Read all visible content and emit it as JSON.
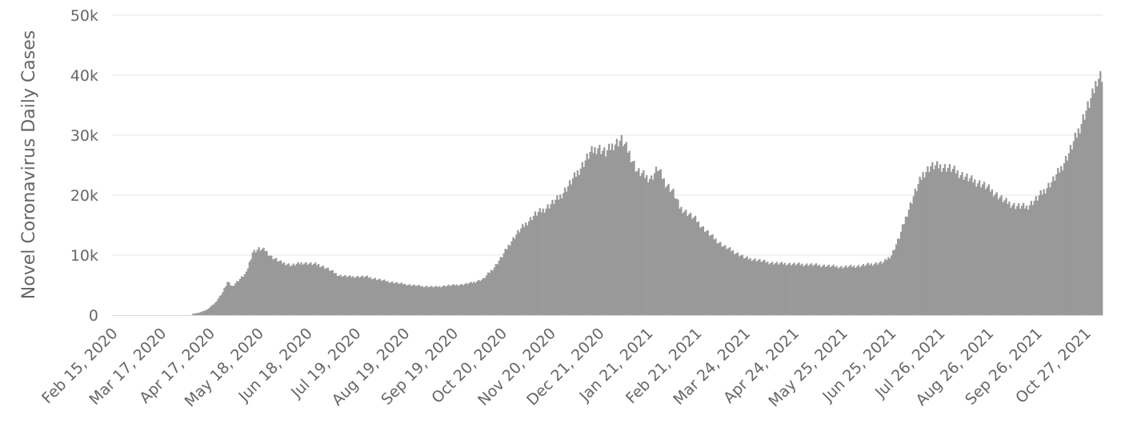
{
  "chart_data": {
    "type": "bar",
    "title": "",
    "xlabel": "",
    "ylabel": "Novel Coronavirus Daily Cases",
    "ylim": [
      0,
      50000
    ],
    "y_ticks": [
      0,
      10000,
      20000,
      30000,
      40000,
      50000
    ],
    "y_tick_labels": [
      "0",
      "10k",
      "20k",
      "30k",
      "40k",
      "50k"
    ],
    "x_start": "2020-02-15",
    "x_end": "2021-11-06",
    "x_ticks": [
      {
        "date": "2020-02-15",
        "label": "Feb 15, 2020"
      },
      {
        "date": "2020-03-17",
        "label": "Mar 17, 2020"
      },
      {
        "date": "2020-04-17",
        "label": "Apr 17, 2020"
      },
      {
        "date": "2020-05-18",
        "label": "May 18, 2020"
      },
      {
        "date": "2020-06-18",
        "label": "Jun 18, 2020"
      },
      {
        "date": "2020-07-19",
        "label": "Jul 19, 2020"
      },
      {
        "date": "2020-08-19",
        "label": "Aug 19, 2020"
      },
      {
        "date": "2020-09-19",
        "label": "Sep 19, 2020"
      },
      {
        "date": "2020-10-20",
        "label": "Oct 20, 2020"
      },
      {
        "date": "2020-11-20",
        "label": "Nov 20, 2020"
      },
      {
        "date": "2020-12-21",
        "label": "Dec 21, 2020"
      },
      {
        "date": "2021-01-21",
        "label": "Jan 21, 2021"
      },
      {
        "date": "2021-02-21",
        "label": "Feb 21, 2021"
      },
      {
        "date": "2021-03-24",
        "label": "Mar 24, 2021"
      },
      {
        "date": "2021-04-24",
        "label": "Apr 24, 2021"
      },
      {
        "date": "2021-05-25",
        "label": "May 25, 2021"
      },
      {
        "date": "2021-06-25",
        "label": "Jun 25, 2021"
      },
      {
        "date": "2021-07-26",
        "label": "Jul 26, 2021"
      },
      {
        "date": "2021-08-26",
        "label": "Aug 26, 2021"
      },
      {
        "date": "2021-09-26",
        "label": "Sep 26, 2021"
      },
      {
        "date": "2021-10-27",
        "label": "Oct 27, 2021"
      }
    ],
    "grid": true,
    "legend": "none",
    "bar_color": "#999999",
    "gridline_color": "#e6e6e6",
    "baseline_color": "#ccd6eb",
    "text_color": "#666666",
    "series": [
      {
        "points": [
          [
            "2020-02-15",
            0
          ],
          [
            "2020-04-05",
            0
          ],
          [
            "2020-04-06",
            200
          ],
          [
            "2020-04-10",
            400
          ],
          [
            "2020-04-15",
            900
          ],
          [
            "2020-04-20",
            2000
          ],
          [
            "2020-04-25",
            3800
          ],
          [
            "2020-04-28",
            5500
          ],
          [
            "2020-05-01",
            4800
          ],
          [
            "2020-05-05",
            5800
          ],
          [
            "2020-05-10",
            7000
          ],
          [
            "2020-05-14",
            10500
          ],
          [
            "2020-05-18",
            11000
          ],
          [
            "2020-05-22",
            10800
          ],
          [
            "2020-05-26",
            9700
          ],
          [
            "2020-06-01",
            8800
          ],
          [
            "2020-06-08",
            8300
          ],
          [
            "2020-06-15",
            8700
          ],
          [
            "2020-06-25",
            8400
          ],
          [
            "2020-07-01",
            7700
          ],
          [
            "2020-07-08",
            6600
          ],
          [
            "2020-07-15",
            6400
          ],
          [
            "2020-07-25",
            6400
          ],
          [
            "2020-08-01",
            6000
          ],
          [
            "2020-08-10",
            5500
          ],
          [
            "2020-08-20",
            5100
          ],
          [
            "2020-08-30",
            4800
          ],
          [
            "2020-09-08",
            4700
          ],
          [
            "2020-09-15",
            4900
          ],
          [
            "2020-09-25",
            5100
          ],
          [
            "2020-10-01",
            5400
          ],
          [
            "2020-10-08",
            6000
          ],
          [
            "2020-10-15",
            8000
          ],
          [
            "2020-10-20",
            9800
          ],
          [
            "2020-10-25",
            12000
          ],
          [
            "2020-10-30",
            13800
          ],
          [
            "2020-11-05",
            15500
          ],
          [
            "2020-11-10",
            16800
          ],
          [
            "2020-11-15",
            17500
          ],
          [
            "2020-11-20",
            18500
          ],
          [
            "2020-11-25",
            19500
          ],
          [
            "2020-12-01",
            21500
          ],
          [
            "2020-12-05",
            23000
          ],
          [
            "2020-12-10",
            25000
          ],
          [
            "2020-12-15",
            27000
          ],
          [
            "2020-12-20",
            28000
          ],
          [
            "2020-12-25",
            27000
          ],
          [
            "2020-12-30",
            28500
          ],
          [
            "2021-01-04",
            29200
          ],
          [
            "2021-01-09",
            27000
          ],
          [
            "2021-01-14",
            24000
          ],
          [
            "2021-01-20",
            23000
          ],
          [
            "2021-01-23",
            22800
          ],
          [
            "2021-01-27",
            24500
          ],
          [
            "2021-02-01",
            22000
          ],
          [
            "2021-02-06",
            20500
          ],
          [
            "2021-02-10",
            18000
          ],
          [
            "2021-02-15",
            17000
          ],
          [
            "2021-02-20",
            16000
          ],
          [
            "2021-02-25",
            14500
          ],
          [
            "2021-03-03",
            13000
          ],
          [
            "2021-03-10",
            11500
          ],
          [
            "2021-03-17",
            10500
          ],
          [
            "2021-03-24",
            9500
          ],
          [
            "2021-03-31",
            9200
          ],
          [
            "2021-04-07",
            8800
          ],
          [
            "2021-04-14",
            8600
          ],
          [
            "2021-04-24",
            8500
          ],
          [
            "2021-05-05",
            8400
          ],
          [
            "2021-05-15",
            8200
          ],
          [
            "2021-05-25",
            8000
          ],
          [
            "2021-06-05",
            8200
          ],
          [
            "2021-06-12",
            8500
          ],
          [
            "2021-06-20",
            8800
          ],
          [
            "2021-06-25",
            10000
          ],
          [
            "2021-06-30",
            13000
          ],
          [
            "2021-07-05",
            17000
          ],
          [
            "2021-07-10",
            20500
          ],
          [
            "2021-07-15",
            23500
          ],
          [
            "2021-07-20",
            24800
          ],
          [
            "2021-07-26",
            24800
          ],
          [
            "2021-08-01",
            24500
          ],
          [
            "2021-08-08",
            23500
          ],
          [
            "2021-08-15",
            22500
          ],
          [
            "2021-08-22",
            21800
          ],
          [
            "2021-08-29",
            20500
          ],
          [
            "2021-09-05",
            19000
          ],
          [
            "2021-09-12",
            18200
          ],
          [
            "2021-09-19",
            18000
          ],
          [
            "2021-09-26",
            19500
          ],
          [
            "2021-10-01",
            21000
          ],
          [
            "2021-10-06",
            22500
          ],
          [
            "2021-10-11",
            24500
          ],
          [
            "2021-10-16",
            27000
          ],
          [
            "2021-10-21",
            30000
          ],
          [
            "2021-10-26",
            33500
          ],
          [
            "2021-10-31",
            36500
          ],
          [
            "2021-11-03",
            39500
          ],
          [
            "2021-11-06",
            40000
          ]
        ]
      }
    ]
  }
}
